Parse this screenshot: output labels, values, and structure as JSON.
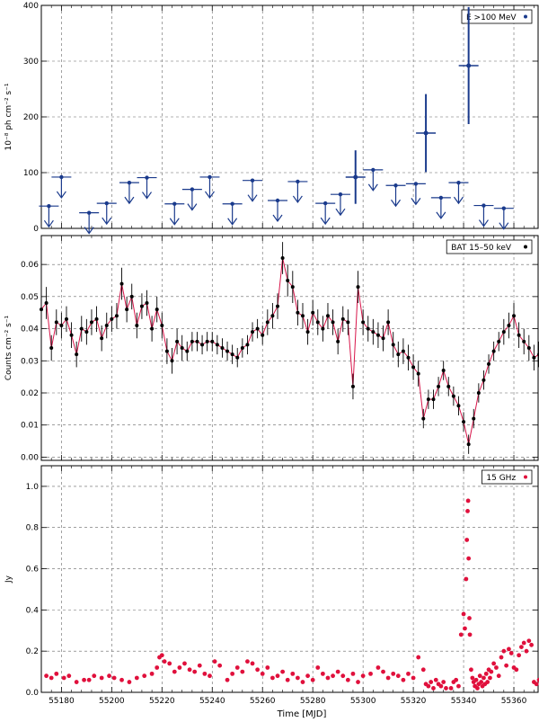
{
  "figure": {
    "xlabel": "Time [MJD]"
  },
  "chart_data": [
    {
      "type": "scatter",
      "panel": "gamma",
      "ylabel": "10⁻⁸ ph cm⁻² s⁻¹",
      "ylim": [
        0,
        400
      ],
      "yticks": [
        0,
        100,
        200,
        300,
        400
      ],
      "xlim": [
        55172,
        55370
      ],
      "xticks": [
        55180,
        55200,
        55220,
        55240,
        55260,
        55280,
        55300,
        55320,
        55340,
        55360
      ],
      "grid": true,
      "legend": {
        "label": "E >100 MeV",
        "position": "top-right"
      },
      "color": "#1a3a8c",
      "upper_limits": [
        {
          "x": 55175,
          "y": 40
        },
        {
          "x": 55180,
          "y": 92
        },
        {
          "x": 55191,
          "y": 28
        },
        {
          "x": 55198,
          "y": 45
        },
        {
          "x": 55207,
          "y": 82
        },
        {
          "x": 55214,
          "y": 91
        },
        {
          "x": 55225,
          "y": 44
        },
        {
          "x": 55232,
          "y": 70
        },
        {
          "x": 55239,
          "y": 92
        },
        {
          "x": 55248,
          "y": 44
        },
        {
          "x": 55256,
          "y": 86
        },
        {
          "x": 55266,
          "y": 50
        },
        {
          "x": 55274,
          "y": 84
        },
        {
          "x": 55285,
          "y": 45
        },
        {
          "x": 55291,
          "y": 61
        },
        {
          "x": 55304,
          "y": 105
        },
        {
          "x": 55313,
          "y": 77
        },
        {
          "x": 55321,
          "y": 80
        },
        {
          "x": 55331,
          "y": 55
        },
        {
          "x": 55338,
          "y": 82
        },
        {
          "x": 55348,
          "y": 41
        },
        {
          "x": 55356,
          "y": 36
        }
      ],
      "detections": [
        {
          "x": 55297,
          "y": 92,
          "err": 48
        },
        {
          "x": 55325,
          "y": 171,
          "err": 70
        },
        {
          "x": 55342,
          "y": 292,
          "err": 105
        }
      ]
    },
    {
      "type": "line",
      "panel": "bat",
      "ylabel": "Counts cm⁻² s⁻¹",
      "ylim": [
        -0.001,
        0.069
      ],
      "yticks": [
        0.0,
        0.01,
        0.02,
        0.03,
        0.04,
        0.05,
        0.06
      ],
      "xlim": [
        55172,
        55370
      ],
      "grid": true,
      "legend": {
        "label": "BAT 15–50 keV",
        "position": "top-right"
      },
      "point_color": "#000000",
      "line_color": "#d8154a",
      "points": [
        [
          55172,
          0.046,
          0.004
        ],
        [
          55174,
          0.048,
          0.005
        ],
        [
          55176,
          0.034,
          0.004
        ],
        [
          55178,
          0.042,
          0.004
        ],
        [
          55180,
          0.041,
          0.004
        ],
        [
          55182,
          0.043,
          0.004
        ],
        [
          55184,
          0.038,
          0.004
        ],
        [
          55186,
          0.032,
          0.004
        ],
        [
          55188,
          0.04,
          0.004
        ],
        [
          55190,
          0.039,
          0.004
        ],
        [
          55192,
          0.042,
          0.004
        ],
        [
          55194,
          0.043,
          0.004
        ],
        [
          55196,
          0.037,
          0.004
        ],
        [
          55198,
          0.041,
          0.004
        ],
        [
          55200,
          0.043,
          0.004
        ],
        [
          55202,
          0.044,
          0.004
        ],
        [
          55204,
          0.054,
          0.005
        ],
        [
          55206,
          0.046,
          0.004
        ],
        [
          55208,
          0.05,
          0.004
        ],
        [
          55210,
          0.041,
          0.004
        ],
        [
          55212,
          0.047,
          0.004
        ],
        [
          55214,
          0.048,
          0.004
        ],
        [
          55216,
          0.04,
          0.004
        ],
        [
          55218,
          0.046,
          0.004
        ],
        [
          55220,
          0.041,
          0.004
        ],
        [
          55222,
          0.033,
          0.004
        ],
        [
          55224,
          0.03,
          0.004
        ],
        [
          55226,
          0.036,
          0.004
        ],
        [
          55228,
          0.034,
          0.004
        ],
        [
          55230,
          0.033,
          0.003
        ],
        [
          55232,
          0.036,
          0.003
        ],
        [
          55234,
          0.036,
          0.003
        ],
        [
          55236,
          0.035,
          0.003
        ],
        [
          55238,
          0.036,
          0.003
        ],
        [
          55240,
          0.036,
          0.003
        ],
        [
          55242,
          0.035,
          0.003
        ],
        [
          55244,
          0.034,
          0.003
        ],
        [
          55246,
          0.033,
          0.003
        ],
        [
          55248,
          0.032,
          0.003
        ],
        [
          55250,
          0.031,
          0.003
        ],
        [
          55252,
          0.034,
          0.003
        ],
        [
          55254,
          0.035,
          0.003
        ],
        [
          55256,
          0.039,
          0.003
        ],
        [
          55258,
          0.04,
          0.003
        ],
        [
          55260,
          0.038,
          0.003
        ],
        [
          55262,
          0.042,
          0.004
        ],
        [
          55264,
          0.044,
          0.004
        ],
        [
          55266,
          0.047,
          0.004
        ],
        [
          55268,
          0.062,
          0.005
        ],
        [
          55270,
          0.055,
          0.005
        ],
        [
          55272,
          0.053,
          0.005
        ],
        [
          55274,
          0.045,
          0.004
        ],
        [
          55276,
          0.044,
          0.004
        ],
        [
          55278,
          0.039,
          0.004
        ],
        [
          55280,
          0.045,
          0.004
        ],
        [
          55282,
          0.042,
          0.004
        ],
        [
          55284,
          0.04,
          0.004
        ],
        [
          55286,
          0.044,
          0.004
        ],
        [
          55288,
          0.042,
          0.004
        ],
        [
          55290,
          0.036,
          0.004
        ],
        [
          55292,
          0.043,
          0.004
        ],
        [
          55294,
          0.042,
          0.004
        ],
        [
          55296,
          0.022,
          0.004
        ],
        [
          55298,
          0.053,
          0.005
        ],
        [
          55300,
          0.042,
          0.004
        ],
        [
          55302,
          0.04,
          0.004
        ],
        [
          55304,
          0.039,
          0.004
        ],
        [
          55306,
          0.038,
          0.004
        ],
        [
          55308,
          0.037,
          0.004
        ],
        [
          55310,
          0.042,
          0.004
        ],
        [
          55312,
          0.035,
          0.004
        ],
        [
          55314,
          0.032,
          0.004
        ],
        [
          55316,
          0.033,
          0.004
        ],
        [
          55318,
          0.031,
          0.004
        ],
        [
          55320,
          0.028,
          0.004
        ],
        [
          55322,
          0.026,
          0.004
        ],
        [
          55324,
          0.012,
          0.003
        ],
        [
          55326,
          0.018,
          0.003
        ],
        [
          55328,
          0.018,
          0.003
        ],
        [
          55330,
          0.022,
          0.003
        ],
        [
          55332,
          0.027,
          0.003
        ],
        [
          55334,
          0.022,
          0.003
        ],
        [
          55336,
          0.019,
          0.003
        ],
        [
          55338,
          0.016,
          0.003
        ],
        [
          55340,
          0.011,
          0.003
        ],
        [
          55342,
          0.004,
          0.003
        ],
        [
          55344,
          0.012,
          0.003
        ],
        [
          55346,
          0.02,
          0.003
        ],
        [
          55348,
          0.024,
          0.003
        ],
        [
          55350,
          0.029,
          0.003
        ],
        [
          55352,
          0.033,
          0.003
        ],
        [
          55354,
          0.036,
          0.003
        ],
        [
          55356,
          0.039,
          0.004
        ],
        [
          55358,
          0.041,
          0.004
        ],
        [
          55360,
          0.044,
          0.004
        ],
        [
          55362,
          0.038,
          0.004
        ],
        [
          55364,
          0.036,
          0.004
        ],
        [
          55366,
          0.034,
          0.004
        ],
        [
          55368,
          0.031,
          0.004
        ],
        [
          55370,
          0.032,
          0.004
        ]
      ]
    },
    {
      "type": "scatter",
      "panel": "radio",
      "ylabel": "Jy",
      "ylim": [
        0,
        1.1
      ],
      "yticks": [
        0.0,
        0.2,
        0.4,
        0.6,
        0.8,
        1.0
      ],
      "xlim": [
        55172,
        55370
      ],
      "grid": true,
      "legend": {
        "label": "15 GHz",
        "position": "top-right"
      },
      "color": "#e0103c",
      "points": [
        [
          55174,
          0.08
        ],
        [
          55176,
          0.07
        ],
        [
          55178,
          0.09
        ],
        [
          55181,
          0.07
        ],
        [
          55183,
          0.08
        ],
        [
          55186,
          0.05
        ],
        [
          55189,
          0.06
        ],
        [
          55191,
          0.06
        ],
        [
          55193,
          0.08
        ],
        [
          55196,
          0.07
        ],
        [
          55199,
          0.08
        ],
        [
          55201,
          0.07
        ],
        [
          55204,
          0.06
        ],
        [
          55207,
          0.05
        ],
        [
          55210,
          0.07
        ],
        [
          55213,
          0.08
        ],
        [
          55216,
          0.09
        ],
        [
          55218,
          0.12
        ],
        [
          55219,
          0.17
        ],
        [
          55220,
          0.18
        ],
        [
          55221,
          0.15
        ],
        [
          55223,
          0.14
        ],
        [
          55225,
          0.1
        ],
        [
          55227,
          0.12
        ],
        [
          55229,
          0.14
        ],
        [
          55231,
          0.11
        ],
        [
          55233,
          0.1
        ],
        [
          55235,
          0.13
        ],
        [
          55237,
          0.09
        ],
        [
          55239,
          0.08
        ],
        [
          55241,
          0.15
        ],
        [
          55243,
          0.13
        ],
        [
          55246,
          0.06
        ],
        [
          55248,
          0.09
        ],
        [
          55250,
          0.12
        ],
        [
          55252,
          0.1
        ],
        [
          55254,
          0.15
        ],
        [
          55256,
          0.14
        ],
        [
          55258,
          0.11
        ],
        [
          55260,
          0.09
        ],
        [
          55262,
          0.12
        ],
        [
          55264,
          0.07
        ],
        [
          55266,
          0.08
        ],
        [
          55268,
          0.1
        ],
        [
          55270,
          0.06
        ],
        [
          55272,
          0.09
        ],
        [
          55274,
          0.07
        ],
        [
          55276,
          0.05
        ],
        [
          55278,
          0.08
        ],
        [
          55280,
          0.06
        ],
        [
          55282,
          0.12
        ],
        [
          55284,
          0.09
        ],
        [
          55286,
          0.07
        ],
        [
          55288,
          0.08
        ],
        [
          55290,
          0.1
        ],
        [
          55292,
          0.08
        ],
        [
          55294,
          0.06
        ],
        [
          55296,
          0.09
        ],
        [
          55298,
          0.05
        ],
        [
          55300,
          0.08
        ],
        [
          55303,
          0.09
        ],
        [
          55306,
          0.12
        ],
        [
          55308,
          0.1
        ],
        [
          55310,
          0.07
        ],
        [
          55312,
          0.09
        ],
        [
          55314,
          0.08
        ],
        [
          55316,
          0.06
        ],
        [
          55318,
          0.09
        ],
        [
          55320,
          0.07
        ],
        [
          55322,
          0.17
        ],
        [
          55324,
          0.11
        ],
        [
          55325,
          0.04
        ],
        [
          55326,
          0.03
        ],
        [
          55327,
          0.05
        ],
        [
          55328,
          0.02
        ],
        [
          55329,
          0.06
        ],
        [
          55330,
          0.04
        ],
        [
          55331,
          0.03
        ],
        [
          55332,
          0.05
        ],
        [
          55333,
          0.02
        ],
        [
          55335,
          0.02
        ],
        [
          55336,
          0.05
        ],
        [
          55337,
          0.06
        ],
        [
          55338,
          0.03
        ],
        [
          55339,
          0.28
        ],
        [
          55340,
          0.38
        ],
        [
          55340.5,
          0.31
        ],
        [
          55341,
          0.55
        ],
        [
          55341.3,
          0.74
        ],
        [
          55341.6,
          0.88
        ],
        [
          55341.8,
          0.93
        ],
        [
          55342,
          0.65
        ],
        [
          55342.3,
          0.36
        ],
        [
          55342.5,
          0.28
        ],
        [
          55343,
          0.11
        ],
        [
          55343.5,
          0.07
        ],
        [
          55344,
          0.05
        ],
        [
          55344.5,
          0.03
        ],
        [
          55345,
          0.06
        ],
        [
          55345.5,
          0.02
        ],
        [
          55346,
          0.04
        ],
        [
          55346.5,
          0.08
        ],
        [
          55347,
          0.05
        ],
        [
          55347.5,
          0.03
        ],
        [
          55348,
          0.07
        ],
        [
          55348.5,
          0.04
        ],
        [
          55349,
          0.09
        ],
        [
          55349.5,
          0.05
        ],
        [
          55350,
          0.11
        ],
        [
          55350.5,
          0.07
        ],
        [
          55351,
          0.1
        ],
        [
          55352,
          0.14
        ],
        [
          55353,
          0.12
        ],
        [
          55354,
          0.08
        ],
        [
          55355,
          0.17
        ],
        [
          55356,
          0.2
        ],
        [
          55357,
          0.13
        ],
        [
          55358,
          0.21
        ],
        [
          55359,
          0.19
        ],
        [
          55360,
          0.12
        ],
        [
          55361,
          0.11
        ],
        [
          55362,
          0.18
        ],
        [
          55363,
          0.22
        ],
        [
          55364,
          0.24
        ],
        [
          55365,
          0.2
        ],
        [
          55366,
          0.25
        ],
        [
          55367,
          0.23
        ],
        [
          55368,
          0.05
        ],
        [
          55369,
          0.04
        ],
        [
          55370,
          0.06
        ]
      ]
    }
  ]
}
